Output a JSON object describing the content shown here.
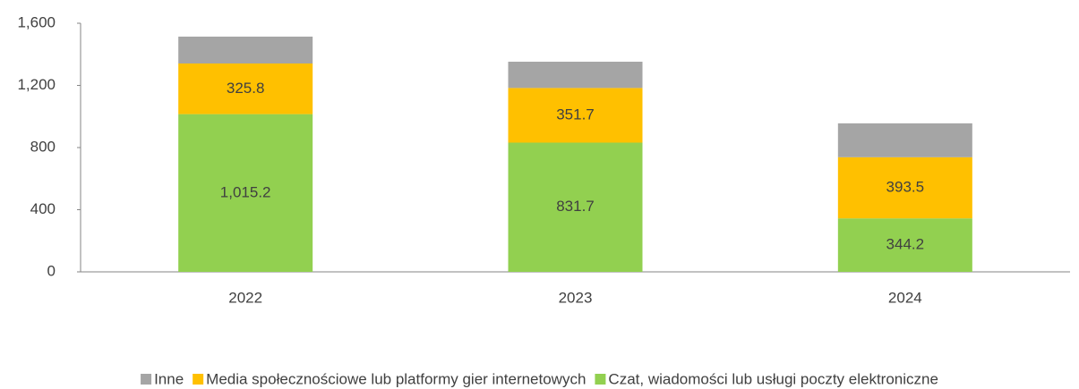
{
  "chart_data": {
    "type": "stacked_bar",
    "categories": [
      "2022",
      "2023",
      "2024"
    ],
    "series": [
      {
        "name": "Czat, wiadomości lub usługi poczty elektroniczne",
        "color": "#92d050",
        "values": [
          1015.2,
          831.7,
          344.2
        ],
        "value_labels": [
          "1,015.2",
          "831.7",
          "344.2"
        ]
      },
      {
        "name": "Media społecznościowe lub platformy gier internetowych",
        "color": "#ffc000",
        "values": [
          325.8,
          351.7,
          393.5
        ]
      },
      {
        "name": "Inne",
        "color": "#a5a5a5",
        "values": [
          173,
          169,
          218
        ]
      }
    ],
    "ylim": [
      0,
      1600
    ],
    "yticks": [
      0,
      400,
      800,
      {
        "value": 1200,
        "label": "1,200"
      },
      {
        "value": 1600,
        "label": "1,600"
      }
    ],
    "grid": false,
    "legend": "bottom"
  }
}
